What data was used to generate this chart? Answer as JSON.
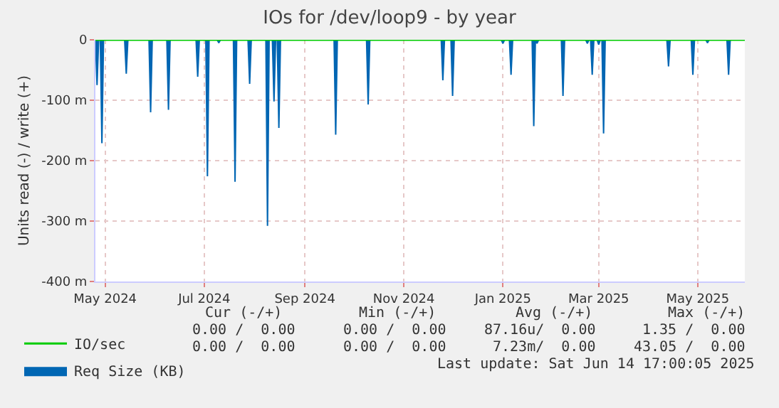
{
  "chart_data": {
    "type": "area",
    "title": "IOs for /dev/loop9 - by year",
    "ylabel": "Units read (-) / write (+)",
    "xlim": [
      "2024-05-10",
      "2025-06-14"
    ],
    "xticks": [
      {
        "value": "2024-05-16",
        "label": "May 2024"
      },
      {
        "value": "2024-07-16",
        "label": "Jul 2024"
      },
      {
        "value": "2024-09-16",
        "label": "Sep 2024"
      },
      {
        "value": "2024-11-16",
        "label": "Nov 2024"
      },
      {
        "value": "2025-01-16",
        "label": "Jan 2025"
      },
      {
        "value": "2025-03-16",
        "label": "Mar 2025"
      },
      {
        "value": "2025-05-16",
        "label": "May 2025"
      }
    ],
    "ylim": [
      -400,
      0
    ],
    "yticks": [
      {
        "value": -400,
        "label": "-400 m"
      },
      {
        "value": -300,
        "label": "-300 m"
      },
      {
        "value": -200,
        "label": "-200 m"
      },
      {
        "value": -100,
        "label": "-100 m"
      },
      0
    ],
    "grid": true,
    "legend": "bottom left",
    "series": [
      {
        "name": "IO/sec",
        "color": "#00cc00",
        "type": "line",
        "x": [
          "2024-05-10",
          "2025-06-14"
        ],
        "values": [
          0,
          0
        ]
      },
      {
        "name": "Req Size (KB)",
        "color": "#0066b3",
        "x": [
          "2024-05-10",
          "2024-05-11",
          "2024-05-12",
          "2024-05-13",
          "2024-05-14",
          "2024-05-15",
          "2024-05-28",
          "2024-05-29",
          "2024-05-30",
          "2024-06-12",
          "2024-06-13",
          "2024-06-14",
          "2024-06-23",
          "2024-06-24",
          "2024-06-25",
          "2024-07-11",
          "2024-07-12",
          "2024-07-13",
          "2024-07-17",
          "2024-07-18",
          "2024-07-19",
          "2024-07-24",
          "2024-07-25",
          "2024-07-26",
          "2024-08-03",
          "2024-08-04",
          "2024-08-05",
          "2024-08-12",
          "2024-08-13",
          "2024-08-14",
          "2024-08-23",
          "2024-08-24",
          "2024-08-25",
          "2024-08-27",
          "2024-08-28",
          "2024-08-29",
          "2024-08-30",
          "2024-08-31",
          "2024-09-01",
          "2024-10-04",
          "2024-10-05",
          "2024-10-06",
          "2024-10-24",
          "2024-10-25",
          "2024-10-26",
          "2024-12-09",
          "2024-12-10",
          "2024-12-11",
          "2024-12-15",
          "2024-12-16",
          "2024-12-17",
          "2025-01-15",
          "2025-01-16",
          "2025-01-17",
          "2025-01-20",
          "2025-01-21",
          "2025-01-22",
          "2025-02-03",
          "2025-02-04",
          "2025-02-05",
          "2025-02-06",
          "2025-02-07",
          "2025-02-21",
          "2025-02-22",
          "2025-02-23",
          "2025-03-08",
          "2025-03-09",
          "2025-03-10",
          "2025-03-11",
          "2025-03-12",
          "2025-03-13",
          "2025-03-15",
          "2025-03-16",
          "2025-03-17",
          "2025-03-18",
          "2025-03-19",
          "2025-03-20",
          "2025-04-27",
          "2025-04-28",
          "2025-04-29",
          "2025-05-12",
          "2025-05-13",
          "2025-05-14",
          "2025-05-21",
          "2025-05-22",
          "2025-05-23",
          "2025-06-03",
          "2025-06-04",
          "2025-06-05",
          "2025-06-14"
        ],
        "values": [
          0,
          -75,
          0,
          0,
          -171,
          0,
          0,
          -56,
          0,
          0,
          -120,
          0,
          0,
          -116,
          0,
          0,
          -61,
          0,
          0,
          -226,
          0,
          0,
          -5,
          0,
          0,
          -235,
          0,
          0,
          -73,
          0,
          0,
          -308,
          0,
          0,
          -102,
          0,
          0,
          -146,
          0,
          0,
          -157,
          0,
          0,
          -107,
          0,
          0,
          -67,
          0,
          0,
          -93,
          0,
          0,
          -6,
          0,
          0,
          -58,
          0,
          0,
          -143,
          0,
          -6,
          0,
          0,
          -93,
          0,
          0,
          -6,
          0,
          0,
          -58,
          0,
          0,
          -8,
          0,
          0,
          -155,
          0,
          0,
          -44,
          0,
          0,
          -58,
          0,
          0,
          -5,
          0,
          0,
          -58,
          0,
          0
        ]
      }
    ],
    "annotations": [
      "Cur (-/+)",
      "Min (-/+)",
      "Avg (-/+)",
      "Max (-/+)",
      "0.00 /  0.00",
      "0.00 /  0.00",
      "87.16u/  0.00",
      "1.35 /  0.00",
      "0.00 /  0.00",
      "0.00 /  0.00",
      "7.23m/  0.00",
      "43.05 /  0.00",
      "Last update: Sat Jun 14 17:00:05 2025"
    ]
  }
}
